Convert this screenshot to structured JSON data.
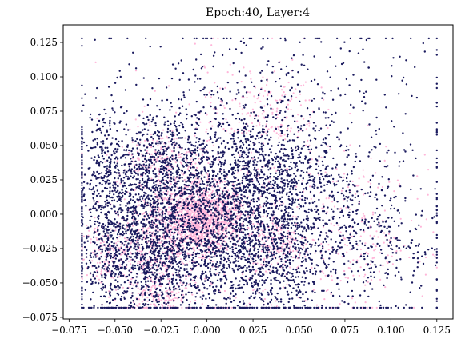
{
  "chart_data": {
    "type": "scatter",
    "title": "Epoch:40, Layer:4",
    "xlabel": "",
    "ylabel": "",
    "xlim": [
      -0.0782,
      0.1338
    ],
    "ylim": [
      -0.0762,
      0.1378
    ],
    "xticks": [
      -0.075,
      -0.05,
      -0.025,
      0.0,
      0.025,
      0.05,
      0.075,
      0.1,
      0.125
    ],
    "xtick_labels": [
      "−0.075",
      "−0.050",
      "−0.025",
      "0.000",
      "0.025",
      "0.050",
      "0.075",
      "0.100",
      "0.125"
    ],
    "yticks": [
      -0.075,
      -0.05,
      -0.025,
      0.0,
      0.025,
      0.05,
      0.075,
      0.1,
      0.125
    ],
    "ytick_labels": [
      "−0.075",
      "−0.050",
      "−0.025",
      "0.000",
      "0.025",
      "0.050",
      "0.075",
      "0.100",
      "0.125"
    ],
    "grid": false,
    "legend": "none",
    "series": [
      {
        "color": "#ffb6d9",
        "marker": "dot",
        "clusters": [
          {
            "cx": -0.003,
            "cy": -0.003,
            "sx": 0.012,
            "sy": 0.012,
            "n": 1400
          },
          {
            "cx": -0.028,
            "cy": -0.02,
            "sx": 0.012,
            "sy": 0.018,
            "n": 300
          },
          {
            "cx": 0.04,
            "cy": -0.02,
            "sx": 0.008,
            "sy": 0.01,
            "n": 160
          },
          {
            "cx": -0.025,
            "cy": 0.04,
            "sx": 0.012,
            "sy": 0.01,
            "n": 200
          },
          {
            "cx": -0.055,
            "cy": -0.03,
            "sx": 0.01,
            "sy": 0.012,
            "n": 150
          },
          {
            "cx": 0.03,
            "cy": 0.075,
            "sx": 0.015,
            "sy": 0.015,
            "n": 160
          },
          {
            "cx": 0.02,
            "cy": 0.0,
            "sx": 0.04,
            "sy": 0.05,
            "n": 500
          },
          {
            "cx": -0.025,
            "cy": -0.06,
            "sx": 0.01,
            "sy": 0.008,
            "n": 160
          },
          {
            "cx": 0.085,
            "cy": -0.02,
            "sx": 0.015,
            "sy": 0.025,
            "n": 140
          }
        ]
      },
      {
        "color": "#1a1a5e",
        "marker": "dot",
        "clusters": [
          {
            "cx": 0.005,
            "cy": 0.0,
            "sx": 0.035,
            "sy": 0.035,
            "n": 1900
          },
          {
            "cx": -0.03,
            "cy": -0.03,
            "sx": 0.018,
            "sy": 0.02,
            "n": 700
          },
          {
            "cx": 0.03,
            "cy": -0.03,
            "sx": 0.018,
            "sy": 0.02,
            "n": 500
          },
          {
            "cx": -0.03,
            "cy": 0.03,
            "sx": 0.018,
            "sy": 0.02,
            "n": 500
          },
          {
            "cx": 0.03,
            "cy": 0.03,
            "sx": 0.018,
            "sy": 0.02,
            "n": 400
          },
          {
            "cx": -0.055,
            "cy": 0.0,
            "sx": 0.008,
            "sy": 0.04,
            "n": 400
          },
          {
            "cx": 0.02,
            "cy": 0.01,
            "sx": 0.05,
            "sy": 0.06,
            "n": 900
          },
          {
            "cx": 0.09,
            "cy": -0.02,
            "sx": 0.02,
            "sy": 0.03,
            "n": 250
          },
          {
            "cx": 0.06,
            "cy": 0.08,
            "sx": 0.04,
            "sy": 0.03,
            "n": 180
          }
        ]
      }
    ]
  }
}
